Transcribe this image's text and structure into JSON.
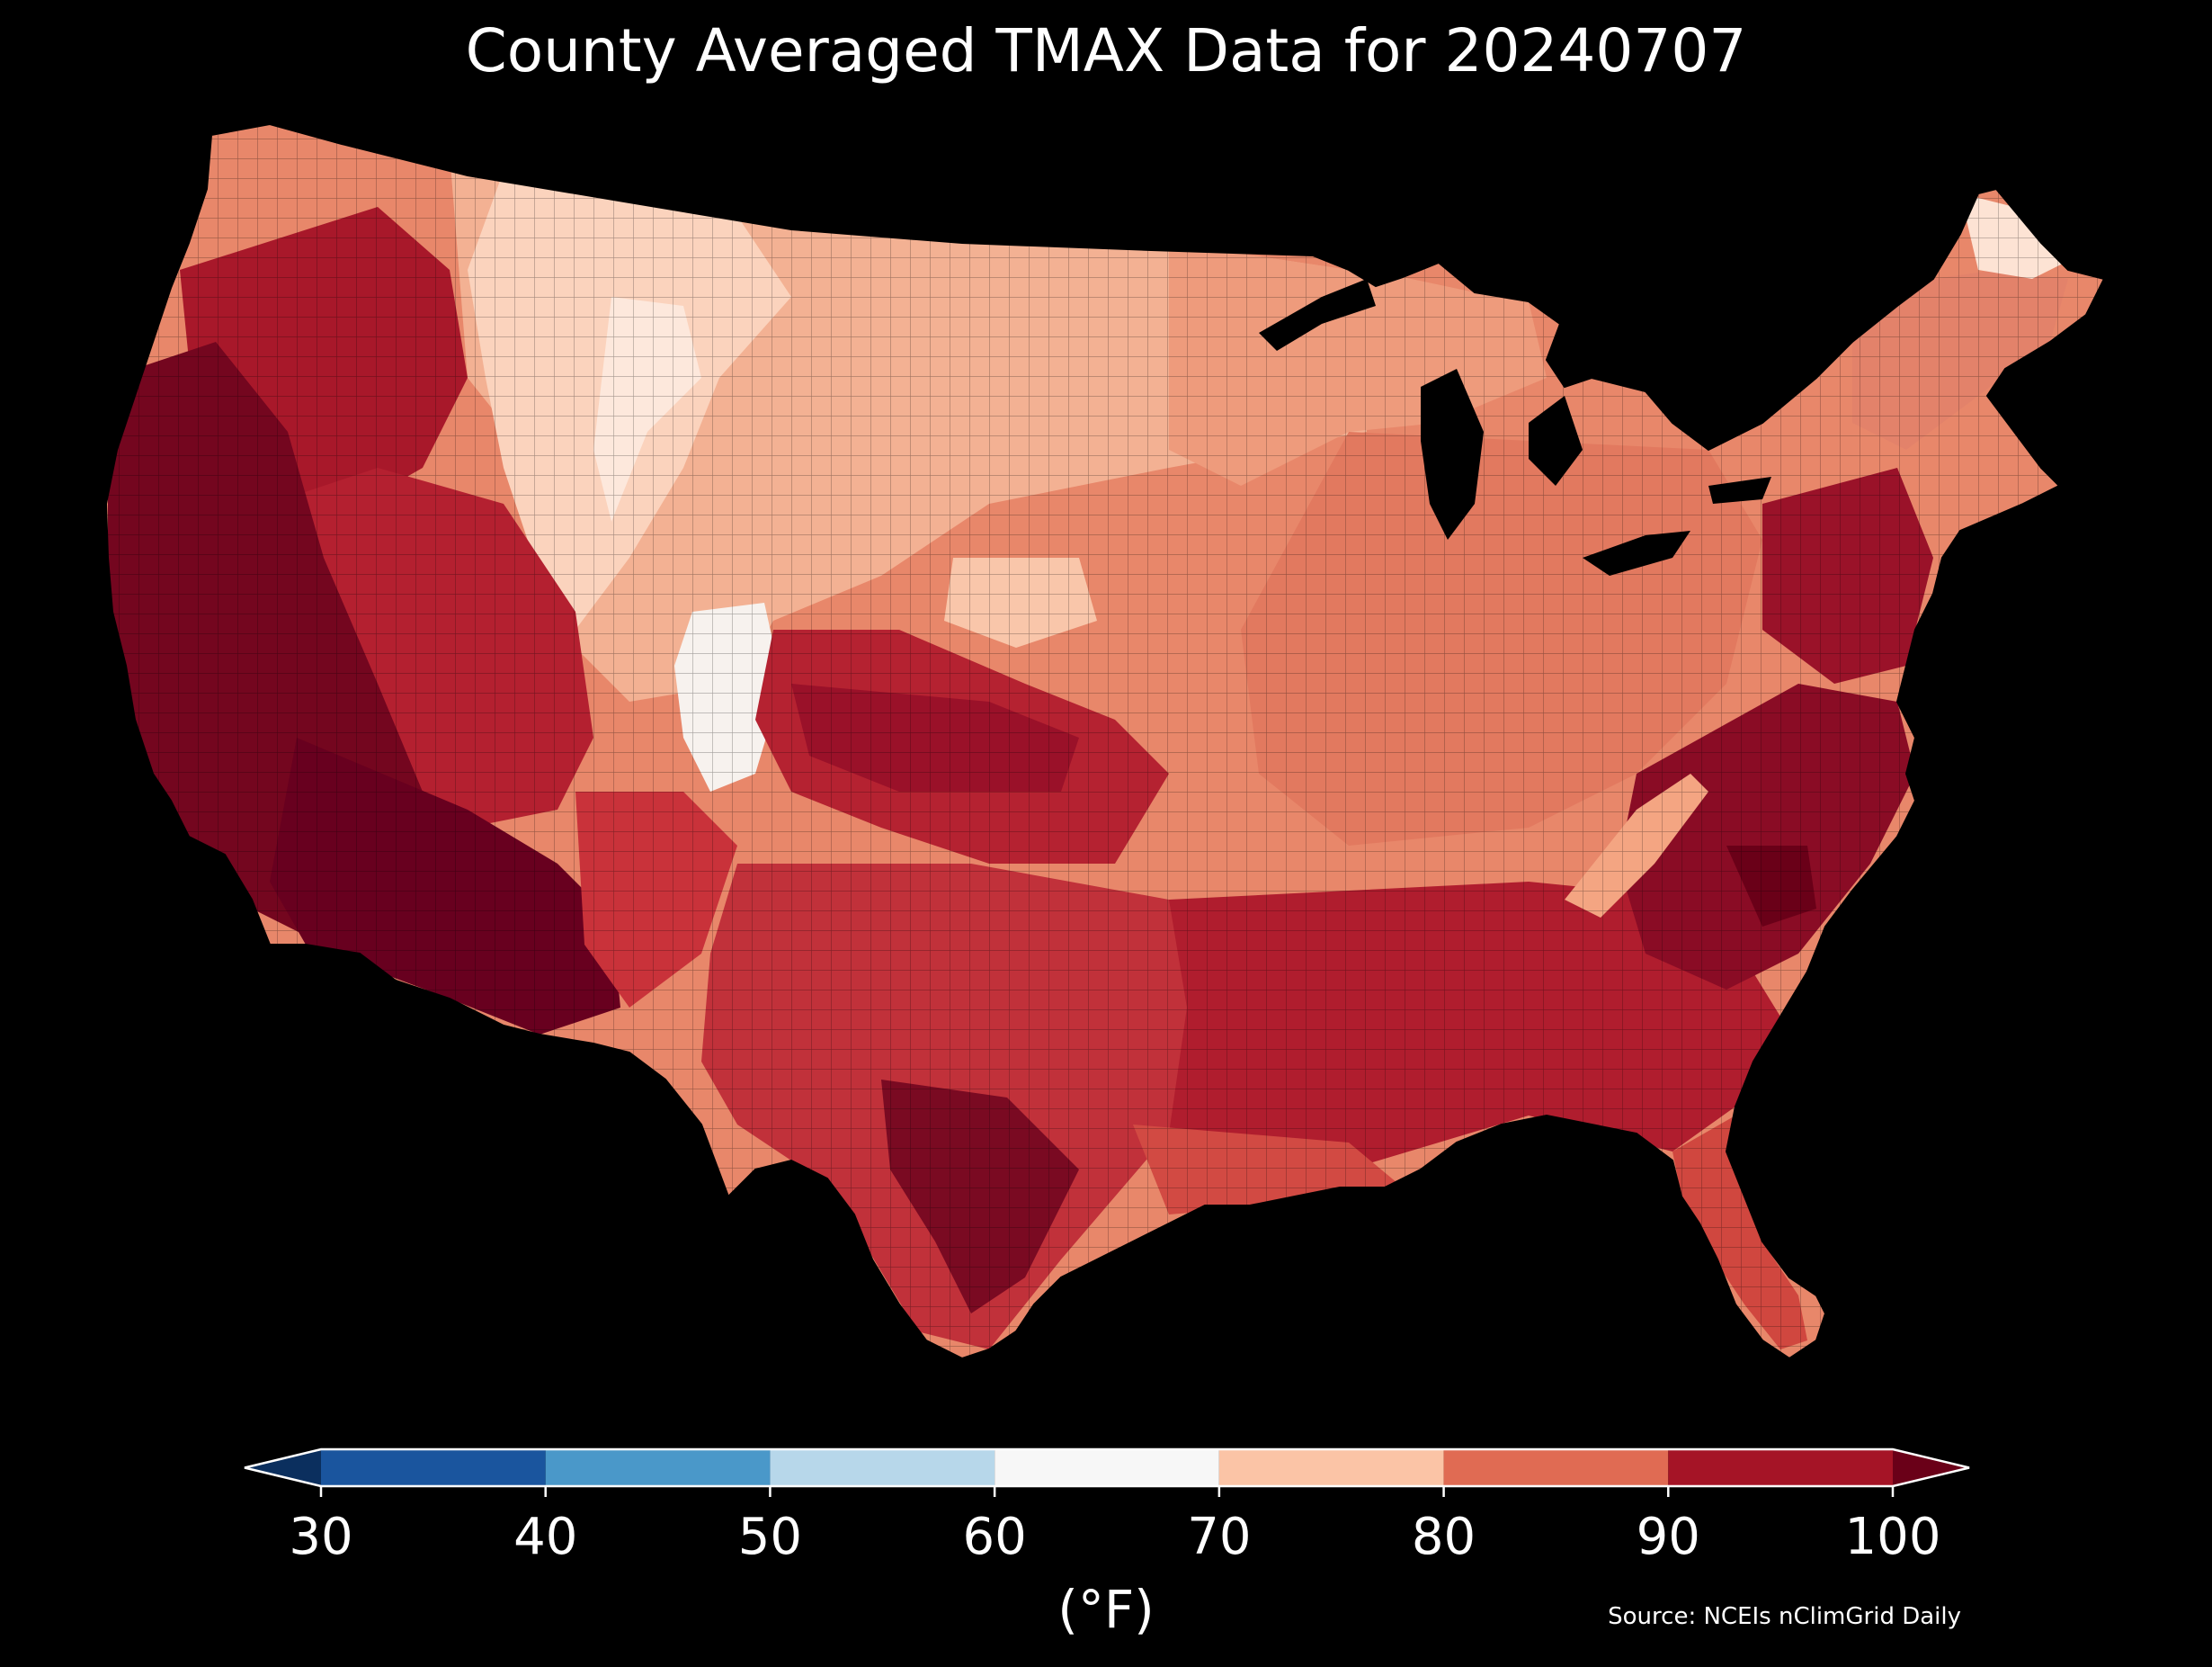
{
  "title": "County Averaged TMAX Data for 20240707",
  "colorbar": {
    "unit_label": "(°F)",
    "ticks": [
      "30",
      "40",
      "50",
      "60",
      "70",
      "80",
      "90",
      "100"
    ],
    "tick_values": [
      30,
      40,
      50,
      60,
      70,
      80,
      90,
      100
    ],
    "extend": "both",
    "bins": [
      {
        "from": 30,
        "to": 40,
        "color": "#1a559e"
      },
      {
        "from": 40,
        "to": 50,
        "color": "#4a98c9"
      },
      {
        "from": 50,
        "to": 60,
        "color": "#b7d7ea"
      },
      {
        "from": 60,
        "to": 70,
        "color": "#f7f7f7"
      },
      {
        "from": 70,
        "to": 80,
        "color": "#fbc4a6"
      },
      {
        "from": 80,
        "to": 90,
        "color": "#e06b53"
      },
      {
        "from": 90,
        "to": 100,
        "color": "#a51426"
      }
    ],
    "under_color": "#0b2f5e",
    "over_color": "#6a0018"
  },
  "source_note": "Source: NCEIs nClimGrid Daily",
  "map": {
    "region": "Contiguous United States",
    "background": "#000000",
    "regions": [
      {
        "name": "Pacific Coast / California Central Valley",
        "color": "#6e0520"
      },
      {
        "name": "Desert Southwest",
        "color": "#67001f"
      },
      {
        "name": "Great Basin",
        "color": "#a51426"
      },
      {
        "name": "Pacific Northwest interior",
        "color": "#a51426"
      },
      {
        "name": "Northern Rockies",
        "color": "#fbc4a6"
      },
      {
        "name": "Colorado Rockies",
        "color": "#f7f7f7"
      },
      {
        "name": "Northern Plains",
        "color": "#f2a88a"
      },
      {
        "name": "Upper Midwest",
        "color": "#ec9d7e"
      },
      {
        "name": "Ohio Valley",
        "color": "#e17d64"
      },
      {
        "name": "Southern Plains",
        "color": "#c1353a"
      },
      {
        "name": "Central Texas",
        "color": "#8e0c25"
      },
      {
        "name": "Gulf Coast",
        "color": "#c83c3c"
      },
      {
        "name": "Southeast interior",
        "color": "#a51426"
      },
      {
        "name": "Carolinas Piedmont",
        "color": "#7a0822"
      },
      {
        "name": "Florida",
        "color": "#d04a42"
      },
      {
        "name": "Mid-Atlantic Coast",
        "color": "#95102a"
      },
      {
        "name": "Appalachian ridge",
        "color": "#f4a582"
      },
      {
        "name": "New England",
        "color": "#e8876a"
      },
      {
        "name": "Northern Maine",
        "color": "#fde3d4"
      },
      {
        "name": "Great Lakes water",
        "color": "#000000"
      }
    ]
  }
}
